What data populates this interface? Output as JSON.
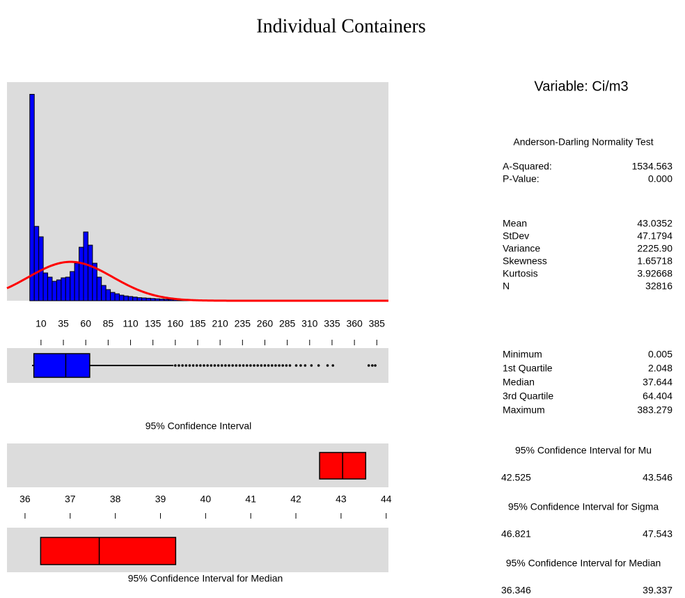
{
  "title": "Individual Containers",
  "chart_data": [
    {
      "type": "histogram",
      "color": "#0000ff",
      "curve_color": "#ff0000",
      "bins": [
        -2.5,
        2.5,
        7.5,
        12.5,
        17.5,
        22.5,
        27.5,
        32.5,
        37.5,
        42.5,
        47.5,
        52.5,
        57.5,
        62.5,
        67.5,
        72.5,
        77.5,
        82.5,
        87.5,
        92.5,
        97.5,
        102.5,
        107.5,
        112.5,
        117.5,
        122.5,
        127.5,
        132.5,
        137.5,
        142.5,
        147.5,
        152.5,
        157.5,
        162.5,
        167.5,
        172.5,
        177.5,
        182.5,
        187.5,
        192.5,
        197.5,
        202.5,
        207.5,
        212.5,
        217.5,
        222.5,
        227.5,
        232.5,
        237.5
      ],
      "counts": [
        7366,
        2654,
        2282,
        992,
        843,
        694,
        744,
        818,
        843,
        1042,
        1339,
        1910,
        2455,
        1984,
        1339,
        843,
        546,
        397,
        298,
        248,
        198,
        170,
        150,
        130,
        110,
        100,
        90,
        80,
        70,
        60,
        50,
        45,
        40,
        35,
        30,
        30,
        25,
        25,
        20,
        20,
        15,
        15,
        10,
        10,
        10,
        5,
        5,
        5
      ],
      "xlim": [
        -28,
        398
      ],
      "ylim": [
        0,
        7800
      ],
      "xticks": [
        10,
        35,
        60,
        85,
        110,
        135,
        160,
        185,
        210,
        235,
        260,
        285,
        310,
        335,
        360,
        385
      ]
    },
    {
      "type": "box",
      "color": "#0000ff",
      "whisker_high": 157.9,
      "outliers": [
        160,
        164,
        168,
        172,
        176,
        180,
        184,
        188,
        192,
        196,
        200,
        204,
        208,
        212,
        216,
        220,
        224,
        228,
        232,
        236,
        240,
        244,
        248,
        252,
        256,
        260,
        264,
        268,
        272,
        276,
        280,
        284,
        288,
        295,
        300,
        305,
        312,
        320,
        330,
        336,
        376,
        380
      ]
    },
    {
      "type": "interval",
      "color": "#ff0000",
      "title": "95% Confidence Interval",
      "label": "95% Confidence Interval for Median",
      "xlim": [
        35.6,
        44.05
      ],
      "xticks": [
        36,
        37,
        38,
        39,
        40,
        41,
        42,
        43,
        44
      ]
    }
  ],
  "stats": {
    "heading": "Variable: Ci/m3",
    "test_title": "Anderson-Darling Normality Test",
    "test": [
      {
        "label": "A-Squared:",
        "value": 1534.563
      },
      {
        "label": "P-Value:",
        "value": 0,
        "value_label": "0.000"
      }
    ],
    "moments": [
      {
        "label": "Mean",
        "value": 43.0352
      },
      {
        "label": "StDev",
        "value": 47.1794
      },
      {
        "label": "Variance",
        "value": 2225.9,
        "value_label": "2225.90"
      },
      {
        "label": "Skewness",
        "value": 1.65718
      },
      {
        "label": "Kurtosis",
        "value": 3.92668
      },
      {
        "label": "N",
        "value": 32816
      }
    ],
    "quantiles": [
      {
        "label": "Minimum",
        "value": 0.005
      },
      {
        "label": "1st Quartile",
        "value": 2.048
      },
      {
        "label": "Median",
        "value": 37.644
      },
      {
        "label": "3rd Quartile",
        "value": 64.404
      },
      {
        "label": "Maximum",
        "value": 383.279
      }
    ],
    "intervals": [
      {
        "title": "95% Confidence Interval for Mu",
        "low": 42.525,
        "high": 43.546
      },
      {
        "title": "95% Confidence Interval for Sigma",
        "low": 46.821,
        "high": 47.543
      },
      {
        "title": "95% Confidence Interval for Median",
        "low": 36.346,
        "high": 39.337
      }
    ]
  }
}
